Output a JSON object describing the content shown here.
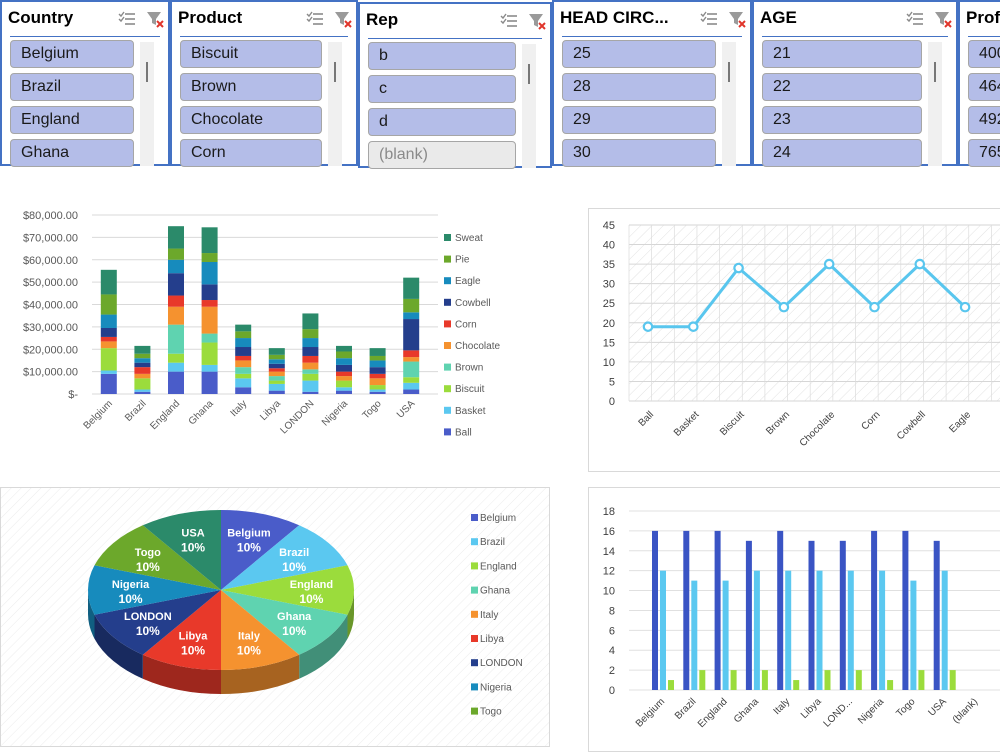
{
  "slicers": {
    "country": {
      "title": "Country",
      "items": [
        "Belgium",
        "Brazil",
        "England",
        "Ghana"
      ]
    },
    "product": {
      "title": "Product",
      "items": [
        "Biscuit",
        "Brown",
        "Chocolate",
        "Corn"
      ]
    },
    "rep": {
      "title": "Rep",
      "items": [
        "b",
        "c",
        "d",
        "(blank)"
      ]
    },
    "head": {
      "title": "HEAD CIRC...",
      "items": [
        "25",
        "28",
        "29",
        "30"
      ]
    },
    "age": {
      "title": "AGE",
      "items": [
        "21",
        "22",
        "23",
        "24"
      ]
    },
    "prof": {
      "title": "Prof",
      "items": [
        "400",
        "464",
        "492",
        "765"
      ]
    }
  },
  "chart_data": [
    {
      "type": "bar",
      "stacked": true,
      "categories": [
        "Belgium",
        "Brazil",
        "England",
        "Ghana",
        "Italy",
        "Libya",
        "LONDON",
        "Nigeria",
        "Togo",
        "USA"
      ],
      "yticks": [
        "$80,000.00",
        "$70,000.00",
        "$60,000.00",
        "$50,000.00",
        "$40,000.00",
        "$30,000.00",
        "$20,000.00",
        "$10,000.00",
        "$-"
      ],
      "ylim": [
        0,
        80000
      ],
      "legend_position": "right",
      "series": [
        {
          "name": "Ball",
          "color": "#4a5cc9",
          "values": [
            9000,
            1000,
            10000,
            10000,
            3000,
            1500,
            1000,
            1500,
            1000,
            2000
          ]
        },
        {
          "name": "Basket",
          "color": "#5bc8f0",
          "values": [
            1500,
            1000,
            4000,
            3000,
            4000,
            3000,
            5000,
            1500,
            1000,
            3000
          ]
        },
        {
          "name": "Biscuit",
          "color": "#9bdc3c",
          "values": [
            10000,
            5000,
            4000,
            10000,
            2000,
            1500,
            3000,
            3000,
            2000,
            2500
          ]
        },
        {
          "name": "Brown",
          "color": "#5fd3b0",
          "values": [
            0,
            0,
            13000,
            4000,
            3000,
            2000,
            2000,
            0,
            0,
            7000
          ]
        },
        {
          "name": "Chocolate",
          "color": "#f5922f",
          "values": [
            3000,
            2000,
            8000,
            12000,
            3000,
            2000,
            3000,
            2000,
            3000,
            2000
          ]
        },
        {
          "name": "Corn",
          "color": "#e8392a",
          "values": [
            2000,
            3000,
            5000,
            3000,
            2000,
            1500,
            3000,
            2000,
            2000,
            3000
          ]
        },
        {
          "name": "Cowbell",
          "color": "#243e8c",
          "values": [
            4000,
            2000,
            10000,
            7000,
            4000,
            2000,
            4000,
            3000,
            3000,
            14000
          ]
        },
        {
          "name": "Eagle",
          "color": "#178bbd",
          "values": [
            6000,
            2000,
            6000,
            10000,
            4000,
            2000,
            4000,
            3000,
            3000,
            3000
          ]
        },
        {
          "name": "Pie",
          "color": "#6ca82b",
          "values": [
            9000,
            2000,
            5000,
            4000,
            3000,
            2000,
            4000,
            3000,
            2000,
            6000
          ]
        },
        {
          "name": "Sweat",
          "color": "#2b8a6a",
          "values": [
            11000,
            3500,
            10000,
            11500,
            3000,
            3000,
            7000,
            2500,
            3500,
            9500
          ]
        }
      ]
    },
    {
      "type": "line",
      "categories": [
        "Ball",
        "Basket",
        "Biscuit",
        "Brown",
        "Chocolate",
        "Corn",
        "Cowbell",
        "Eagle"
      ],
      "values": [
        19,
        19,
        34,
        24,
        35,
        24,
        35,
        24
      ],
      "yticks": [
        "45",
        "40",
        "35",
        "30",
        "25",
        "20",
        "15",
        "10",
        "5",
        "0"
      ],
      "ylim": [
        0,
        45
      ],
      "grid": true
    },
    {
      "type": "pie",
      "categories": [
        "Belgium",
        "Brazil",
        "England",
        "Ghana",
        "Italy",
        "Libya",
        "LONDON",
        "Nigeria",
        "Togo",
        "USA"
      ],
      "labels": [
        "Belgium",
        "Brazil",
        "England",
        "Ghana",
        "Italy",
        "Libya",
        "LONDON",
        "Nigeria",
        "Togo",
        "USA"
      ],
      "percent_label": "10%",
      "values": [
        10,
        10,
        10,
        10,
        10,
        10,
        10,
        10,
        10,
        10
      ],
      "colors": [
        "#4a5cc9",
        "#5bc8f0",
        "#9bdc3c",
        "#5fd3b0",
        "#f5922f",
        "#e8392a",
        "#243e8c",
        "#178bbd",
        "#6ca82b",
        "#2b8a6a"
      ],
      "legend": [
        "Belgium",
        "Brazil",
        "England",
        "Ghana",
        "Italy",
        "Libya",
        "LONDON",
        "Nigeria",
        "Togo"
      ],
      "legend_position": "right"
    },
    {
      "type": "bar",
      "categories": [
        "Belgium",
        "Brazil",
        "England",
        "Ghana",
        "Italy",
        "Libya",
        "LOND...",
        "Nigeria",
        "Togo",
        "USA",
        "(blank)"
      ],
      "yticks": [
        "18",
        "16",
        "14",
        "12",
        "10",
        "8",
        "6",
        "4",
        "2",
        "0"
      ],
      "ylim": [
        0,
        18
      ],
      "series": [
        {
          "color": "#3a54c4",
          "values": [
            16,
            16,
            16,
            15,
            16,
            15,
            15,
            16,
            16,
            15,
            null
          ]
        },
        {
          "color": "#5bc8f0",
          "values": [
            12,
            11,
            11,
            12,
            12,
            12,
            12,
            12,
            11,
            12,
            null
          ]
        },
        {
          "color": "#9bdc3c",
          "values": [
            1,
            2,
            2,
            2,
            1,
            2,
            2,
            1,
            2,
            2,
            null
          ]
        }
      ]
    }
  ]
}
